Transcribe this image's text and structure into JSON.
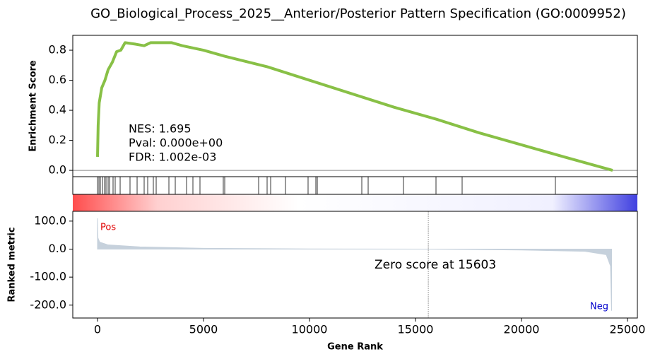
{
  "title": "GO_Biological_Process_2025__Anterior/Posterior Pattern Specification (GO:0009952)",
  "chart_data": [
    {
      "type": "line",
      "ylabel": "Enrichment Score",
      "color": "#88c046",
      "x": [
        0,
        30,
        80,
        200,
        350,
        500,
        700,
        900,
        1100,
        1300,
        1800,
        2200,
        2500,
        3000,
        3500,
        4000,
        5000,
        6000,
        8000,
        10000,
        12000,
        14000,
        16000,
        18000,
        20000,
        22000,
        24300
      ],
      "values": [
        0.09,
        0.3,
        0.45,
        0.55,
        0.6,
        0.67,
        0.72,
        0.79,
        0.8,
        0.85,
        0.84,
        0.83,
        0.85,
        0.85,
        0.85,
        0.83,
        0.8,
        0.76,
        0.69,
        0.6,
        0.51,
        0.42,
        0.34,
        0.25,
        0.17,
        0.09,
        0.0
      ],
      "xlim": [
        -1167,
        25467
      ],
      "ylim": [
        -0.042,
        0.899
      ],
      "yticks": [
        {
          "value": 0,
          "label": "0.0"
        },
        {
          "value": 0.2,
          "label": "0.2"
        },
        {
          "value": 0.4,
          "label": "0.4"
        },
        {
          "value": 0.6,
          "label": "0.6"
        },
        {
          "value": 0.8,
          "label": "0.8"
        }
      ],
      "annotations": [
        "NES: 1.695",
        "Pval: 0.000e+00",
        "FDR: 1.002e-03"
      ]
    },
    {
      "type": "rug",
      "xlim": [
        -1167,
        25467
      ],
      "x": [
        0,
        67,
        133,
        233,
        333,
        400,
        500,
        567,
        733,
        833,
        1067,
        1533,
        1867,
        2200,
        2367,
        2633,
        2767,
        3367,
        3667,
        4200,
        4500,
        4833,
        5933,
        6000,
        7600,
        8000,
        8167,
        8867,
        9933,
        10300,
        10367,
        12467,
        12767,
        14433,
        15967,
        17200,
        21600
      ]
    },
    {
      "type": "area",
      "ylabel": "Ranked metric",
      "xlabel": "Gene Rank",
      "color": "#c6d1dc",
      "x": [
        0,
        20,
        100,
        500,
        2000,
        5000,
        10000,
        15603,
        20000,
        23000,
        24000,
        24200,
        24250
      ],
      "values": [
        110,
        40,
        25,
        15,
        8,
        3,
        0.5,
        0,
        -3,
        -8,
        -20,
        -60,
        -220
      ],
      "xlim": [
        -1167,
        25467
      ],
      "ylim": [
        -246,
        135
      ],
      "xticks": [
        0,
        5000,
        10000,
        15000,
        20000,
        25000
      ],
      "yticks": [
        {
          "value": 100,
          "label": "100.0"
        },
        {
          "value": 0,
          "label": "0.0"
        },
        {
          "value": -100,
          "label": "-100.0"
        },
        {
          "value": -200,
          "label": "-200.0"
        }
      ],
      "zero_rank": 15603,
      "zero_label": "Zero score at 15603",
      "pos_label": "Pos",
      "neg_label": "Neg"
    }
  ]
}
